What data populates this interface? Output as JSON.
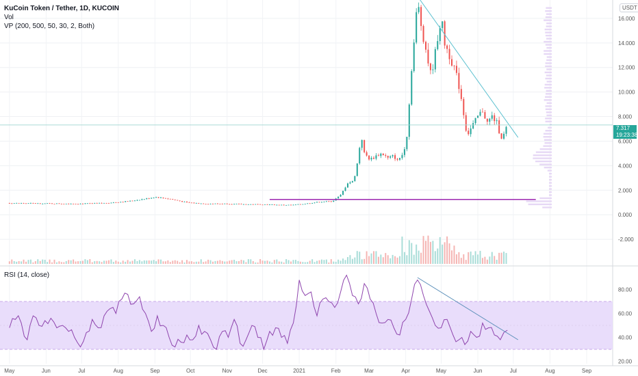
{
  "header": {
    "title": "KuCoin Token / Tether, 1D, KUCOIN",
    "vol_label": "Vol",
    "vp_label": "VP (200, 500, 50, 30, 2, Both)",
    "currency_button": "USDT",
    "rsi_label": "RSI (14, close)"
  },
  "last_price": {
    "value": "7.317",
    "countdown": "19:23:38"
  },
  "colors": {
    "up": "#26a69a",
    "down": "#ef5350",
    "trendline": "#5ec1d0",
    "support_line": "#9c27b0",
    "rsi_line": "#8e44ad",
    "rsi_band": "#e9ddfb",
    "volume_profile": "#e6d8f5"
  },
  "chart_data": [
    {
      "type": "candlestick",
      "title": "KuCoin Token / Tether, 1D, KUCOIN",
      "ylim": [
        -4,
        17.5
      ],
      "y_ticks": [
        "16.000",
        "14.000",
        "12.000",
        "10.000",
        "8.000",
        "6.000",
        "4.000",
        "2.000",
        "0.000",
        "-2.000"
      ],
      "y_tick_values": [
        16,
        14,
        12,
        10,
        8,
        6,
        4,
        2,
        0,
        -2
      ],
      "x_labels": [
        "May",
        "Jun",
        "Jul",
        "Aug",
        "Sep",
        "Oct",
        "Nov",
        "Dec",
        "2021",
        "Feb",
        "Mar",
        "Apr",
        "May",
        "Jun",
        "Jul",
        "Aug",
        "Sep"
      ],
      "x_label_days": [
        0,
        31,
        61,
        92,
        123,
        153,
        184,
        214,
        245,
        276,
        304,
        335,
        365,
        396,
        426,
        457,
        488
      ],
      "x_range_days": [
        -8,
        510
      ],
      "last_bar_day": 421,
      "close_path": [
        [
          0,
          0.95
        ],
        [
          30,
          0.92
        ],
        [
          60,
          0.9
        ],
        [
          80,
          0.95
        ],
        [
          100,
          1.1
        ],
        [
          115,
          1.3
        ],
        [
          123,
          1.45
        ],
        [
          135,
          1.3
        ],
        [
          150,
          1.0
        ],
        [
          165,
          0.9
        ],
        [
          184,
          0.9
        ],
        [
          200,
          0.85
        ],
        [
          214,
          0.85
        ],
        [
          228,
          0.8
        ],
        [
          240,
          0.8
        ],
        [
          250,
          0.9
        ],
        [
          262,
          1.05
        ],
        [
          273,
          1.1
        ],
        [
          280,
          1.6
        ],
        [
          286,
          2.6
        ],
        [
          290,
          2.7
        ],
        [
          293,
          3.5
        ],
        [
          296,
          5.5
        ],
        [
          297,
          6.8
        ],
        [
          300,
          5.0
        ],
        [
          305,
          4.5
        ],
        [
          310,
          4.8
        ],
        [
          315,
          5.0
        ],
        [
          320,
          4.6
        ],
        [
          325,
          4.8
        ],
        [
          328,
          4.4
        ],
        [
          333,
          5.0
        ],
        [
          336,
          6.5
        ],
        [
          338,
          9.0
        ],
        [
          340,
          12.0
        ],
        [
          343,
          15.0
        ],
        [
          345,
          17.5
        ],
        [
          347,
          16.0
        ],
        [
          350,
          14.5
        ],
        [
          353,
          13.0
        ],
        [
          356,
          11.5
        ],
        [
          359,
          12.5
        ],
        [
          362,
          14.5
        ],
        [
          365,
          16.0
        ],
        [
          368,
          14.0
        ],
        [
          372,
          13.0
        ],
        [
          376,
          12.0
        ],
        [
          380,
          10.5
        ],
        [
          383,
          9.0
        ],
        [
          385,
          7.5
        ],
        [
          387,
          6.5
        ],
        [
          390,
          7.0
        ],
        [
          393,
          7.5
        ],
        [
          396,
          8.0
        ],
        [
          400,
          8.5
        ],
        [
          404,
          7.5
        ],
        [
          408,
          8.0
        ],
        [
          412,
          7.5
        ],
        [
          415,
          6.5
        ],
        [
          417,
          6.2
        ],
        [
          419,
          6.8
        ],
        [
          421,
          7.317
        ]
      ],
      "support_line": {
        "day_start": 220,
        "day_end": 445,
        "value": 1.25
      },
      "trend_line": {
        "day_start": 345,
        "value_start": 17.8,
        "day_end": 430,
        "value_end": 6.3
      },
      "last_price": 7.317
    },
    {
      "type": "line",
      "title": "RSI (14, close)",
      "ylim": [
        18,
        98
      ],
      "y_ticks": [
        "80.00",
        "60.00",
        "40.00",
        "20.00"
      ],
      "y_tick_values": [
        80,
        60,
        40,
        20
      ],
      "band": [
        30,
        70
      ],
      "midline": 50,
      "x": [
        0,
        5,
        10,
        15,
        20,
        25,
        30,
        35,
        40,
        45,
        50,
        55,
        60,
        65,
        70,
        75,
        80,
        85,
        90,
        95,
        100,
        105,
        110,
        115,
        120,
        125,
        130,
        135,
        140,
        145,
        150,
        155,
        160,
        165,
        170,
        175,
        180,
        185,
        190,
        195,
        200,
        205,
        210,
        215,
        220,
        225,
        230,
        235,
        240,
        245,
        250,
        255,
        260,
        265,
        270,
        275,
        280,
        285,
        290,
        295,
        300,
        305,
        310,
        315,
        320,
        325,
        330,
        335,
        340,
        345,
        350,
        355,
        360,
        365,
        370,
        375,
        380,
        385,
        390,
        395,
        400,
        405,
        410,
        415,
        421
      ],
      "values": [
        48,
        55,
        52,
        38,
        58,
        50,
        54,
        56,
        48,
        50,
        45,
        40,
        32,
        44,
        55,
        48,
        58,
        64,
        60,
        72,
        76,
        68,
        74,
        60,
        45,
        58,
        50,
        40,
        32,
        36,
        42,
        38,
        50,
        45,
        38,
        30,
        45,
        40,
        55,
        35,
        38,
        50,
        40,
        30,
        45,
        48,
        40,
        35,
        52,
        88,
        75,
        78,
        58,
        72,
        70,
        65,
        78,
        92,
        75,
        68,
        85,
        72,
        60,
        52,
        55,
        48,
        42,
        55,
        72,
        88,
        75,
        62,
        50,
        48,
        55,
        42,
        38,
        34,
        45,
        40,
        52,
        48,
        42,
        38,
        46
      ],
      "trend_line": {
        "day_start": 345,
        "value_start": 90,
        "day_end": 430,
        "value_end": 38
      }
    }
  ]
}
